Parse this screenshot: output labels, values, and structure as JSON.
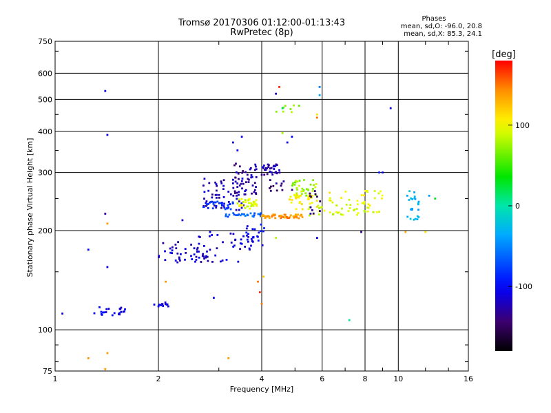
{
  "chart_data": {
    "type": "scatter",
    "title": "Tromsø 20170306 01:12:00-01:13:43",
    "subtitle": "RwPretec (8p)",
    "xlabel": "Frequency [MHz]",
    "ylabel": "Stationary phase Virtual Height [km]",
    "xscale": "log",
    "yscale": "log",
    "xlim": [
      1,
      16
    ],
    "ylim": [
      75,
      750
    ],
    "grid": true,
    "x_ticks": [
      "1",
      "2",
      "4",
      "6",
      "8",
      "10",
      "16"
    ],
    "x_minor_ticks": [
      3,
      5,
      7,
      9,
      12,
      14
    ],
    "y_ticks": [
      "75",
      "100",
      "200",
      "300",
      "400",
      "500",
      "600",
      "750"
    ],
    "y_minor_ticks": [
      80,
      90,
      150,
      250,
      350,
      450,
      700
    ],
    "stats": {
      "title": "Phases",
      "line1": "mean, sd,O: -96.0, 20.8",
      "line2": "mean, sd,X:  85.3, 24.1"
    },
    "colorbar": {
      "label": "[deg]",
      "min": -180,
      "max": 180,
      "ticks": [
        "100",
        "0",
        "-100"
      ],
      "tick_values": [
        100,
        0,
        -100
      ],
      "colormap": "rainbow"
    },
    "clusters": [
      {
        "x0": 1.3,
        "x1": 1.6,
        "y0": 110,
        "y1": 118,
        "phase": -105,
        "n": 22
      },
      {
        "x0": 1.9,
        "x1": 2.15,
        "y0": 117,
        "y1": 121,
        "phase": -110,
        "n": 12
      },
      {
        "x0": 2.0,
        "x1": 2.9,
        "y0": 160,
        "y1": 185,
        "phase": -120,
        "n": 40
      },
      {
        "x0": 2.5,
        "x1": 3.8,
        "y0": 160,
        "y1": 200,
        "phase": -115,
        "n": 45
      },
      {
        "x0": 2.7,
        "x1": 3.6,
        "y0": 230,
        "y1": 290,
        "phase": -120,
        "n": 55
      },
      {
        "x0": 2.7,
        "x1": 3.3,
        "y0": 232,
        "y1": 245,
        "phase": -85,
        "n": 30
      },
      {
        "x0": 3.3,
        "x1": 3.9,
        "y0": 255,
        "y1": 325,
        "phase": -130,
        "n": 45
      },
      {
        "x0": 4.0,
        "x1": 4.6,
        "y0": 295,
        "y1": 320,
        "phase": -125,
        "n": 30
      },
      {
        "x0": 3.6,
        "x1": 4.1,
        "y0": 180,
        "y1": 210,
        "phase": -100,
        "n": 20
      },
      {
        "x0": 3.1,
        "x1": 4.0,
        "y0": 220,
        "y1": 226,
        "phase": -65,
        "n": 25
      },
      {
        "x0": 3.4,
        "x1": 3.9,
        "y0": 233,
        "y1": 250,
        "phase": 95,
        "n": 35
      },
      {
        "x0": 4.0,
        "x1": 5.3,
        "y0": 218,
        "y1": 224,
        "phase": 140,
        "n": 55
      },
      {
        "x0": 4.9,
        "x1": 5.8,
        "y0": 255,
        "y1": 285,
        "phase": 75,
        "n": 35
      },
      {
        "x0": 4.8,
        "x1": 5.8,
        "y0": 232,
        "y1": 258,
        "phase": 105,
        "n": 30
      },
      {
        "x0": 5.5,
        "x1": 9.0,
        "y0": 222,
        "y1": 240,
        "phase": 90,
        "n": 40
      },
      {
        "x0": 6.0,
        "x1": 9.0,
        "y0": 240,
        "y1": 265,
        "phase": 100,
        "n": 25
      },
      {
        "x0": 5.5,
        "x1": 6.0,
        "y0": 225,
        "y1": 265,
        "phase": -140,
        "n": 12
      },
      {
        "x0": 10.5,
        "x1": 11.5,
        "y0": 215,
        "y1": 265,
        "phase": -30,
        "n": 25
      },
      {
        "x0": 4.2,
        "x1": 5.0,
        "y0": 260,
        "y1": 285,
        "phase": -140,
        "n": 12
      },
      {
        "x0": 4.4,
        "x1": 5.2,
        "y0": 450,
        "y1": 480,
        "phase": 70,
        "n": 8
      }
    ],
    "points": [
      {
        "x": 1.05,
        "y": 112,
        "phase": -110
      },
      {
        "x": 1.25,
        "y": 175,
        "phase": -100
      },
      {
        "x": 1.25,
        "y": 82,
        "phase": 140
      },
      {
        "x": 1.4,
        "y": 530,
        "phase": -110
      },
      {
        "x": 1.42,
        "y": 390,
        "phase": -110
      },
      {
        "x": 1.42,
        "y": 155,
        "phase": -110
      },
      {
        "x": 1.4,
        "y": 76,
        "phase": 140
      },
      {
        "x": 1.42,
        "y": 85,
        "phase": 140
      },
      {
        "x": 1.42,
        "y": 210,
        "phase": 140
      },
      {
        "x": 1.4,
        "y": 225,
        "phase": -130
      },
      {
        "x": 2.35,
        "y": 215,
        "phase": -120
      },
      {
        "x": 2.1,
        "y": 140,
        "phase": 140
      },
      {
        "x": 2.9,
        "y": 125,
        "phase": -100
      },
      {
        "x": 3.2,
        "y": 82,
        "phase": 140
      },
      {
        "x": 3.3,
        "y": 370,
        "phase": -110
      },
      {
        "x": 3.5,
        "y": 385,
        "phase": -110
      },
      {
        "x": 3.4,
        "y": 350,
        "phase": -110
      },
      {
        "x": 4.5,
        "y": 545,
        "phase": 170
      },
      {
        "x": 4.4,
        "y": 520,
        "phase": -120
      },
      {
        "x": 4.6,
        "y": 395,
        "phase": 80
      },
      {
        "x": 4.75,
        "y": 370,
        "phase": -110
      },
      {
        "x": 4.9,
        "y": 385,
        "phase": -100
      },
      {
        "x": 5.9,
        "y": 545,
        "phase": -50
      },
      {
        "x": 5.9,
        "y": 515,
        "phase": -40
      },
      {
        "x": 5.8,
        "y": 440,
        "phase": 150
      },
      {
        "x": 5.8,
        "y": 450,
        "phase": 110
      },
      {
        "x": 4.6,
        "y": 470,
        "phase": 20
      },
      {
        "x": 3.9,
        "y": 140,
        "phase": 150
      },
      {
        "x": 3.95,
        "y": 130,
        "phase": 170
      },
      {
        "x": 4.05,
        "y": 145,
        "phase": 120
      },
      {
        "x": 4.0,
        "y": 120,
        "phase": 150
      },
      {
        "x": 4.4,
        "y": 190,
        "phase": 80
      },
      {
        "x": 5.8,
        "y": 190,
        "phase": -110
      },
      {
        "x": 7.2,
        "y": 107,
        "phase": 5
      },
      {
        "x": 7.8,
        "y": 198,
        "phase": -140
      },
      {
        "x": 9.5,
        "y": 470,
        "phase": -110
      },
      {
        "x": 8.8,
        "y": 300,
        "phase": -90
      },
      {
        "x": 9.0,
        "y": 300,
        "phase": -110
      },
      {
        "x": 10.5,
        "y": 198,
        "phase": 130
      },
      {
        "x": 12.0,
        "y": 198,
        "phase": 110
      },
      {
        "x": 12.8,
        "y": 250,
        "phase": 30
      },
      {
        "x": 12.3,
        "y": 255,
        "phase": -40
      }
    ]
  }
}
